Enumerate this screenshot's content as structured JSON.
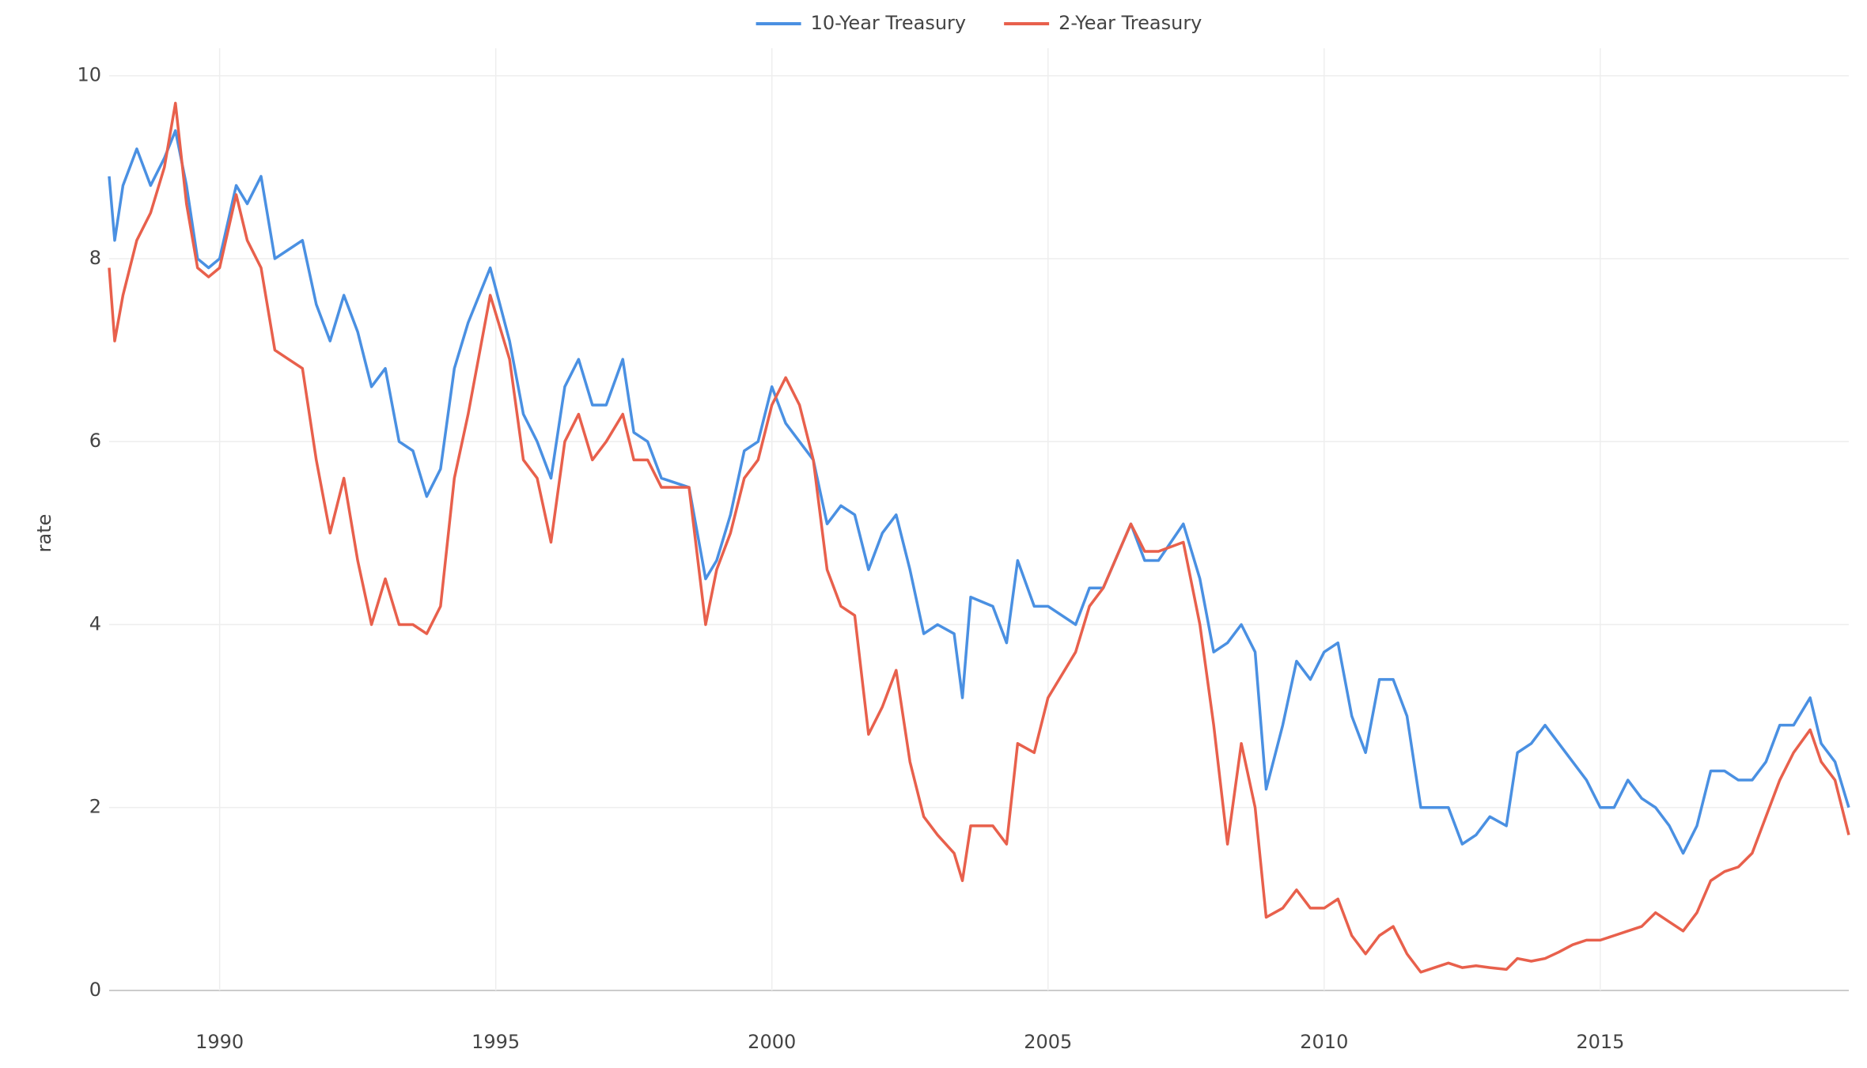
{
  "chart_data": {
    "type": "line",
    "ylabel": "rate",
    "legend": "top",
    "grid": true,
    "xlim": [
      1988.0,
      2019.5
    ],
    "ylim": [
      0,
      10.3
    ],
    "xticks": [
      1990,
      1995,
      2000,
      2005,
      2010,
      2015
    ],
    "yticks": [
      0,
      2,
      4,
      6,
      8,
      10
    ],
    "x": [
      1988.0,
      1988.1,
      1988.25,
      1988.5,
      1988.75,
      1989.0,
      1989.2,
      1989.4,
      1989.6,
      1989.8,
      1990.0,
      1990.3,
      1990.5,
      1990.75,
      1991.0,
      1991.25,
      1991.5,
      1991.75,
      1992.0,
      1992.25,
      1992.5,
      1992.75,
      1993.0,
      1993.25,
      1993.5,
      1993.75,
      1994.0,
      1994.25,
      1994.5,
      1994.9,
      1995.25,
      1995.5,
      1995.75,
      1996.0,
      1996.25,
      1996.5,
      1996.75,
      1997.0,
      1997.3,
      1997.5,
      1997.75,
      1998.0,
      1998.5,
      1998.8,
      1999.0,
      1999.25,
      1999.5,
      1999.75,
      2000.0,
      2000.25,
      2000.5,
      2000.75,
      2001.0,
      2001.25,
      2001.5,
      2001.75,
      2002.0,
      2002.25,
      2002.5,
      2002.75,
      2003.0,
      2003.3,
      2003.45,
      2003.6,
      2004.0,
      2004.25,
      2004.45,
      2004.75,
      2005.0,
      2005.5,
      2005.75,
      2006.0,
      2006.5,
      2006.75,
      2007.0,
      2007.45,
      2007.75,
      2008.0,
      2008.25,
      2008.5,
      2008.75,
      2008.95,
      2009.25,
      2009.5,
      2009.75,
      2010.0,
      2010.25,
      2010.5,
      2010.75,
      2011.0,
      2011.25,
      2011.5,
      2011.75,
      2012.0,
      2012.25,
      2012.5,
      2012.75,
      2013.0,
      2013.3,
      2013.5,
      2013.75,
      2014.0,
      2014.25,
      2014.5,
      2014.75,
      2015.0,
      2015.25,
      2015.5,
      2015.75,
      2016.0,
      2016.25,
      2016.5,
      2016.75,
      2017.0,
      2017.25,
      2017.5,
      2017.75,
      2018.0,
      2018.25,
      2018.5,
      2018.8,
      2019.0,
      2019.25,
      2019.5
    ],
    "series": [
      {
        "name": "10-Year Treasury",
        "color": "#4a90e2",
        "values": [
          8.9,
          8.2,
          8.8,
          9.2,
          8.8,
          9.1,
          9.4,
          8.8,
          8.0,
          7.9,
          8.0,
          8.8,
          8.6,
          8.9,
          8.0,
          8.1,
          8.2,
          7.5,
          7.1,
          7.6,
          7.2,
          6.6,
          6.8,
          6.0,
          5.9,
          5.4,
          5.7,
          6.8,
          7.3,
          7.9,
          7.1,
          6.3,
          6.0,
          5.6,
          6.6,
          6.9,
          6.4,
          6.4,
          6.9,
          6.1,
          6.0,
          5.6,
          5.5,
          4.5,
          4.7,
          5.2,
          5.9,
          6.0,
          6.6,
          6.2,
          6.0,
          5.8,
          5.1,
          5.3,
          5.2,
          4.6,
          5.0,
          5.2,
          4.6,
          3.9,
          4.0,
          3.9,
          3.2,
          4.3,
          4.2,
          3.8,
          4.7,
          4.2,
          4.2,
          4.0,
          4.4,
          4.4,
          5.1,
          4.7,
          4.7,
          5.1,
          4.5,
          3.7,
          3.8,
          4.0,
          3.7,
          2.2,
          2.9,
          3.6,
          3.4,
          3.7,
          3.8,
          3.0,
          2.6,
          3.4,
          3.4,
          3.0,
          2.0,
          2.0,
          2.0,
          1.6,
          1.7,
          1.9,
          1.8,
          2.6,
          2.7,
          2.9,
          2.7,
          2.5,
          2.3,
          2.0,
          2.0,
          2.3,
          2.1,
          2.0,
          1.8,
          1.5,
          1.8,
          2.4,
          2.4,
          2.3,
          2.3,
          2.5,
          2.9,
          2.9,
          3.2,
          2.7,
          2.5,
          2.0
        ]
      },
      {
        "name": "2-Year Treasury",
        "color": "#e8604c",
        "values": [
          7.9,
          7.1,
          7.6,
          8.2,
          8.5,
          9.0,
          9.7,
          8.6,
          7.9,
          7.8,
          7.9,
          8.7,
          8.2,
          7.9,
          7.0,
          6.9,
          6.8,
          5.8,
          5.0,
          5.6,
          4.7,
          4.0,
          4.5,
          4.0,
          4.0,
          3.9,
          4.2,
          5.6,
          6.3,
          7.6,
          6.9,
          5.8,
          5.6,
          4.9,
          6.0,
          6.3,
          5.8,
          6.0,
          6.3,
          5.8,
          5.8,
          5.5,
          5.5,
          4.0,
          4.6,
          5.0,
          5.6,
          5.8,
          6.4,
          6.7,
          6.4,
          5.8,
          4.6,
          4.2,
          4.1,
          2.8,
          3.1,
          3.5,
          2.5,
          1.9,
          1.7,
          1.5,
          1.2,
          1.8,
          1.8,
          1.6,
          2.7,
          2.6,
          3.2,
          3.7,
          4.2,
          4.4,
          5.1,
          4.8,
          4.8,
          4.9,
          4.0,
          2.9,
          1.6,
          2.7,
          2.0,
          0.8,
          0.9,
          1.1,
          0.9,
          0.9,
          1.0,
          0.6,
          0.4,
          0.6,
          0.7,
          0.4,
          0.2,
          0.25,
          0.3,
          0.25,
          0.27,
          0.25,
          0.23,
          0.35,
          0.32,
          0.35,
          0.42,
          0.5,
          0.55,
          0.55,
          0.6,
          0.65,
          0.7,
          0.85,
          0.75,
          0.65,
          0.85,
          1.2,
          1.3,
          1.35,
          1.5,
          1.9,
          2.3,
          2.6,
          2.85,
          2.5,
          2.3,
          1.7
        ]
      }
    ]
  }
}
